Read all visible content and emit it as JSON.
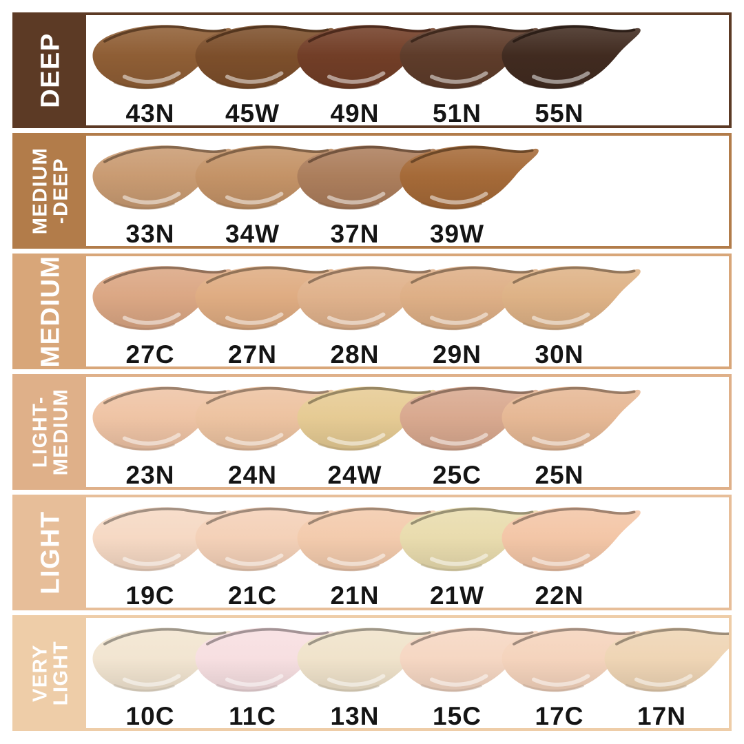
{
  "rows": [
    {
      "label": "DEEP",
      "bar_color": "#5C3A25",
      "swatches": [
        {
          "code": "43N",
          "color": "#8F5E35"
        },
        {
          "code": "45W",
          "color": "#7D4F2B"
        },
        {
          "code": "49N",
          "color": "#723E27"
        },
        {
          "code": "51N",
          "color": "#5E3C2A"
        },
        {
          "code": "55N",
          "color": "#412B20"
        }
      ]
    },
    {
      "label": "MEDIUM\n-DEEP",
      "bar_color": "#B27C4A",
      "swatches": [
        {
          "code": "33N",
          "color": "#C99B72"
        },
        {
          "code": "34W",
          "color": "#C49367"
        },
        {
          "code": "37N",
          "color": "#AC7E5C"
        },
        {
          "code": "39W",
          "color": "#A56A38"
        }
      ]
    },
    {
      "label": "MEDIUM",
      "bar_color": "#D8A679",
      "swatches": [
        {
          "code": "27C",
          "color": "#DBA784"
        },
        {
          "code": "27N",
          "color": "#DFAC82"
        },
        {
          "code": "28N",
          "color": "#E0B28C"
        },
        {
          "code": "29N",
          "color": "#DEAF86"
        },
        {
          "code": "30N",
          "color": "#DEB286"
        }
      ]
    },
    {
      "label": "LIGHT-\nMEDIUM",
      "bar_color": "#DFB089",
      "swatches": [
        {
          "code": "23N",
          "color": "#EFC4A5"
        },
        {
          "code": "24N",
          "color": "#EDC3A1"
        },
        {
          "code": "24W",
          "color": "#E6CB94"
        },
        {
          "code": "25C",
          "color": "#D9A98F"
        },
        {
          "code": "25N",
          "color": "#E6B895"
        }
      ]
    },
    {
      "label": "LIGHT",
      "bar_color": "#E7BE99",
      "swatches": [
        {
          "code": "19C",
          "color": "#F6D9C4"
        },
        {
          "code": "21C",
          "color": "#F4D1B8"
        },
        {
          "code": "21N",
          "color": "#F3CBAD"
        },
        {
          "code": "21W",
          "color": "#E9DCAE"
        },
        {
          "code": "22N",
          "color": "#F3C6A7"
        }
      ]
    },
    {
      "label": "VERY\nLIGHT",
      "bar_color": "#EECDA8",
      "swatches": [
        {
          "code": "10C",
          "color": "#F2E5D1"
        },
        {
          "code": "11C",
          "color": "#F7DFE1"
        },
        {
          "code": "13N",
          "color": "#F0E3CB"
        },
        {
          "code": "15C",
          "color": "#F6D7C3"
        },
        {
          "code": "17C",
          "color": "#F5D4BD"
        },
        {
          "code": "17N",
          "color": "#EFD5B5"
        }
      ]
    }
  ],
  "chart_data": {
    "type": "table",
    "categories": [
      "DEEP",
      "MEDIUM-DEEP",
      "MEDIUM",
      "LIGHT-MEDIUM",
      "LIGHT",
      "VERY LIGHT"
    ],
    "series": [
      {
        "name": "DEEP",
        "values": [
          "43N",
          "45W",
          "49N",
          "51N",
          "55N"
        ],
        "colors": [
          "#8F5E35",
          "#7D4F2B",
          "#723E27",
          "#5E3C2A",
          "#412B20"
        ]
      },
      {
        "name": "MEDIUM-DEEP",
        "values": [
          "33N",
          "34W",
          "37N",
          "39W"
        ],
        "colors": [
          "#C99B72",
          "#C49367",
          "#AC7E5C",
          "#A56A38"
        ]
      },
      {
        "name": "MEDIUM",
        "values": [
          "27C",
          "27N",
          "28N",
          "29N",
          "30N"
        ],
        "colors": [
          "#DBA784",
          "#DFAC82",
          "#E0B28C",
          "#DEAF86",
          "#DEB286"
        ]
      },
      {
        "name": "LIGHT-MEDIUM",
        "values": [
          "23N",
          "24N",
          "24W",
          "25C",
          "25N"
        ],
        "colors": [
          "#EFC4A5",
          "#EDC3A1",
          "#E6CB94",
          "#D9A98F",
          "#E6B895"
        ]
      },
      {
        "name": "LIGHT",
        "values": [
          "19C",
          "21C",
          "21N",
          "21W",
          "22N"
        ],
        "colors": [
          "#F6D9C4",
          "#F4D1B8",
          "#F3CBAD",
          "#E9DCAE",
          "#F3C6A7"
        ]
      },
      {
        "name": "VERY LIGHT",
        "values": [
          "10C",
          "11C",
          "13N",
          "15C",
          "17C",
          "17N"
        ],
        "colors": [
          "#F2E5D1",
          "#F7DFE1",
          "#F0E3CB",
          "#F6D7C3",
          "#F5D4BD",
          "#EFD5B5"
        ]
      }
    ],
    "legend_position": "left",
    "grid": false
  }
}
